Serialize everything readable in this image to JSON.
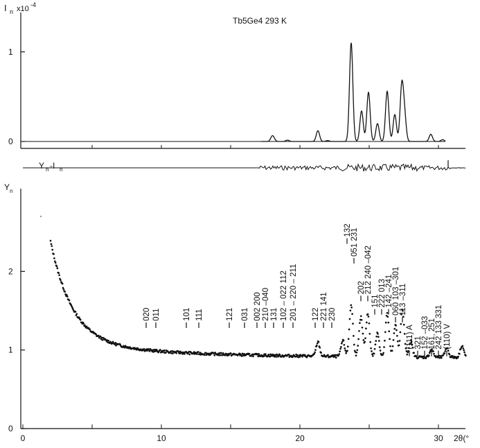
{
  "figure": {
    "title": "Tb5Ge4   293 K",
    "in_label": "I",
    "in_sub": "n",
    "in_scale": "x10",
    "in_exp": "-4",
    "diff_label": "Y",
    "diff_mid": "-I",
    "diff_sub": "n",
    "yn_label": "Y",
    "yn_sub": "n",
    "x_end_label": "2θ(°"
  },
  "chart_data": [
    {
      "type": "line",
      "name": "top",
      "xlim": [
        0,
        32
      ],
      "ylim": [
        0,
        1.3
      ],
      "yticks": [
        0,
        1
      ],
      "ytick_labels": [
        "0",
        "1"
      ],
      "peaks": [
        {
          "x": 18.0,
          "h": 0.05
        },
        {
          "x": 18.1,
          "h": 0.02
        },
        {
          "x": 19.1,
          "h": 0.015
        },
        {
          "x": 21.3,
          "h": 0.12
        },
        {
          "x": 22.0,
          "h": 0.01
        },
        {
          "x": 23.7,
          "h": 1.1
        },
        {
          "x": 24.45,
          "h": 0.34
        },
        {
          "x": 24.95,
          "h": 0.55
        },
        {
          "x": 25.6,
          "h": 0.2
        },
        {
          "x": 26.3,
          "h": 0.56
        },
        {
          "x": 26.85,
          "h": 0.3
        },
        {
          "x": 27.35,
          "h": 0.6
        },
        {
          "x": 27.55,
          "h": 0.28
        },
        {
          "x": 29.45,
          "h": 0.08
        },
        {
          "x": 30.3,
          "h": 0.02
        }
      ],
      "x_range": [
        0,
        30.5
      ]
    },
    {
      "type": "line",
      "name": "difference",
      "xlim": [
        0,
        32
      ],
      "x_range": [
        0,
        32
      ],
      "noise_start": 17.0,
      "noise_end": 30.9
    },
    {
      "type": "scatter",
      "name": "observed",
      "xlim": [
        0,
        32
      ],
      "ylim": [
        0,
        3
      ],
      "xticks": [
        0,
        10,
        20,
        30
      ],
      "xtick_labels": [
        "0",
        "10",
        "20",
        "30"
      ],
      "yticks": [
        0,
        1,
        2
      ],
      "ytick_labels": [
        "0",
        "1",
        "2"
      ],
      "x_range": [
        2.0,
        32.0
      ],
      "background": {
        "base": 0.9,
        "amp": 4.0,
        "decay": 1.6,
        "x0": 2.0
      },
      "point_peaks": [
        {
          "x": 21.3,
          "h": 0.18
        },
        {
          "x": 23.1,
          "h": 0.2
        },
        {
          "x": 23.7,
          "h": 0.65
        },
        {
          "x": 24.4,
          "h": 0.5
        },
        {
          "x": 24.9,
          "h": 0.55
        },
        {
          "x": 25.6,
          "h": 0.3
        },
        {
          "x": 26.3,
          "h": 0.55
        },
        {
          "x": 26.9,
          "h": 0.4
        },
        {
          "x": 27.4,
          "h": 0.6
        },
        {
          "x": 28.0,
          "h": 0.2
        },
        {
          "x": 29.5,
          "h": 0.1
        },
        {
          "x": 30.6,
          "h": 0.12
        },
        {
          "x": 31.7,
          "h": 0.15
        }
      ],
      "annotations": [
        {
          "x": 8.9,
          "y": 1.28,
          "text": "020"
        },
        {
          "x": 9.6,
          "y": 1.28,
          "text": "011"
        },
        {
          "x": 11.8,
          "y": 1.28,
          "text": "101"
        },
        {
          "x": 12.7,
          "y": 1.28,
          "text": "111"
        },
        {
          "x": 14.9,
          "y": 1.28,
          "text": "121"
        },
        {
          "x": 16.0,
          "y": 1.28,
          "text": "031"
        },
        {
          "x": 16.9,
          "y": 1.28,
          "text": "002 200"
        },
        {
          "x": 17.5,
          "y": 1.28,
          "text": "210 –040"
        },
        {
          "x": 18.1,
          "y": 1.28,
          "text": "131"
        },
        {
          "x": 18.8,
          "y": 1.28,
          "text": "102 – 022  112"
        },
        {
          "x": 19.5,
          "y": 1.28,
          "text": "201 – 220 – 211"
        },
        {
          "x": 21.1,
          "y": 1.28,
          "text": "122"
        },
        {
          "x": 21.7,
          "y": 1.28,
          "text": "221 141"
        },
        {
          "x": 22.3,
          "y": 1.28,
          "text": "230"
        },
        {
          "x": 23.4,
          "y": 2.35,
          "text": "132"
        },
        {
          "x": 23.9,
          "y": 2.1,
          "text": "051  231"
        },
        {
          "x": 24.4,
          "y": 1.62,
          "text": "202"
        },
        {
          "x": 24.9,
          "y": 1.62,
          "text": "212 240 –042"
        },
        {
          "x": 25.4,
          "y": 1.45,
          "text": "151"
        },
        {
          "x": 25.9,
          "y": 1.45,
          "text": "222  013"
        },
        {
          "x": 26.4,
          "y": 1.45,
          "text": "142 –241"
        },
        {
          "x": 26.9,
          "y": 1.35,
          "text": "060 103 –301"
        },
        {
          "x": 27.4,
          "y": 1.35,
          "text": "113  –311"
        },
        {
          "x": 27.9,
          "y": 0.92,
          "text": "(111) A"
        },
        {
          "x": 28.5,
          "y": 0.92,
          "text": "321"
        },
        {
          "x": 29.0,
          "y": 0.92,
          "text": "152 –033"
        },
        {
          "x": 29.5,
          "y": 0.92,
          "text": "161, 251"
        },
        {
          "x": 30.0,
          "y": 0.92,
          "text": "242 133 331"
        },
        {
          "x": 30.6,
          "y": 0.92,
          "text": "(110) V"
        }
      ]
    }
  ]
}
